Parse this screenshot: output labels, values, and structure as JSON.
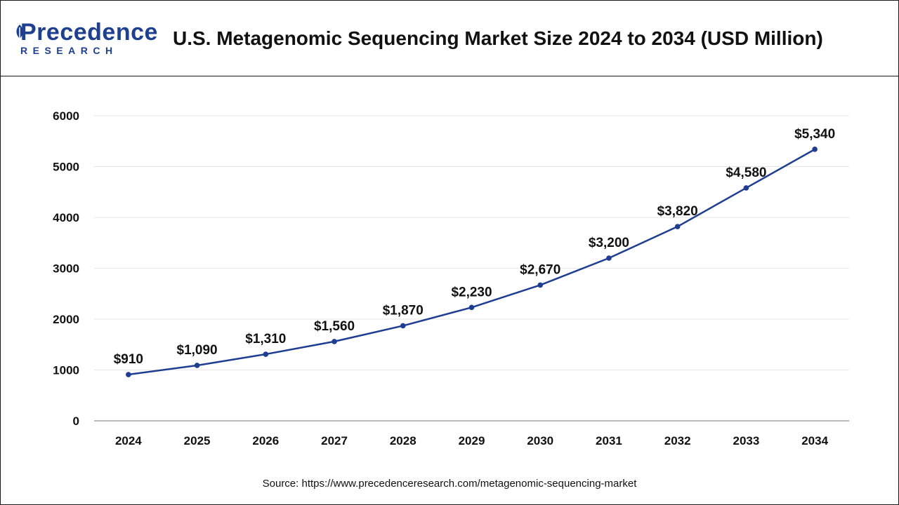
{
  "header": {
    "logo_main": "Precedence",
    "logo_sub": "RESEARCH",
    "title": "U.S. Metagenomic Sequencing Market Size 2024 to 2034 (USD Million)"
  },
  "footer": {
    "source": "Source: https://www.precedenceresearch.com/metagenomic-sequencing-market"
  },
  "colors": {
    "line": "#1f3d91",
    "brand": "#1f3f8f",
    "grid": "#e6e6e6",
    "axis": "#8c8c8c"
  },
  "chart_data": {
    "type": "line",
    "title": "U.S. Metagenomic Sequencing Market Size 2024 to 2034 (USD Million)",
    "categories": [
      "2024",
      "2025",
      "2026",
      "2027",
      "2028",
      "2029",
      "2030",
      "2031",
      "2032",
      "2033",
      "2034"
    ],
    "series": [
      {
        "values": [
          910,
          1090,
          1310,
          1560,
          1870,
          2230,
          2670,
          3200,
          3820,
          4580,
          5340
        ],
        "labels": [
          "$910",
          "$1,090",
          "$1,310",
          "$1,560",
          "$1,870",
          "$2,230",
          "$2,670",
          "$3,200",
          "$3,820",
          "$4,580",
          "$5,340"
        ]
      }
    ],
    "ylim": [
      0,
      6000
    ],
    "yticks": [
      0,
      1000,
      2000,
      3000,
      4000,
      5000,
      6000
    ],
    "grid": true,
    "legend": "none",
    "xlabel": "",
    "ylabel": ""
  }
}
